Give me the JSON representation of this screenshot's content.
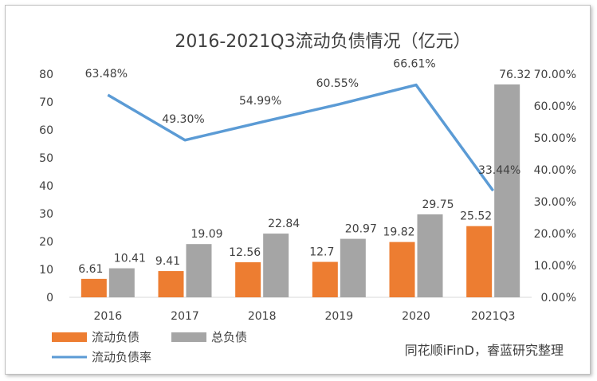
{
  "chart_data": {
    "type": "bar",
    "title": "2016-2021Q3流动负债情况（亿元）",
    "categories": [
      "2016",
      "2017",
      "2018",
      "2019",
      "2020",
      "2021Q3"
    ],
    "series": [
      {
        "name": "流动负债",
        "type": "bar",
        "axis": "left",
        "color": "#ed7d31",
        "values": [
          6.61,
          9.41,
          12.56,
          12.7,
          19.82,
          25.52
        ],
        "labels": [
          "6.61",
          "9.41",
          "12.56",
          "12.7",
          "19.82",
          "25.52"
        ]
      },
      {
        "name": "总负债",
        "type": "bar",
        "axis": "left",
        "color": "#a5a5a5",
        "values": [
          10.41,
          19.09,
          22.84,
          20.97,
          29.75,
          76.32
        ],
        "labels": [
          "10.41",
          "19.09",
          "22.84",
          "20.97",
          "29.75",
          "76.32"
        ]
      },
      {
        "name": "流动负债率",
        "type": "line",
        "axis": "right",
        "color": "#5b9bd5",
        "values": [
          63.48,
          49.3,
          54.99,
          60.55,
          66.61,
          33.44
        ],
        "labels": [
          "63.48%",
          "49.30%",
          "54.99%",
          "60.55%",
          "66.61%",
          "33.44%"
        ]
      }
    ],
    "y_left": {
      "min": 0,
      "max": 80,
      "step": 10,
      "ticks": [
        "0",
        "10",
        "20",
        "30",
        "40",
        "50",
        "60",
        "70",
        "80"
      ]
    },
    "y_right": {
      "min": 0,
      "max": 70,
      "step": 10,
      "ticks": [
        "0.00%",
        "10.00%",
        "20.00%",
        "30.00%",
        "40.00%",
        "50.00%",
        "60.00%",
        "70.00%"
      ]
    },
    "grid": false,
    "legend": "bottom-left",
    "source": "同花顺iFinD，睿蓝研究整理"
  }
}
